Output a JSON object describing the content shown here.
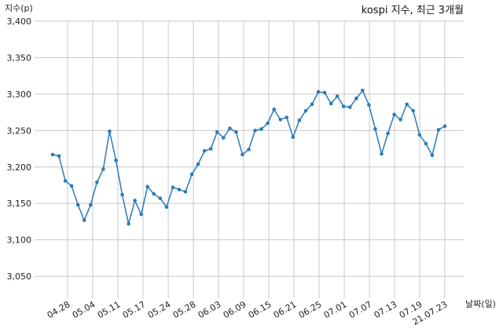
{
  "chart_data": {
    "type": "line",
    "title": "kospi 지수, 최근 3개월",
    "ylabel": "지수(p)",
    "xlabel": "날짜(일)",
    "ylim": [
      3020,
      3400
    ],
    "yticks": [
      3050,
      3100,
      3150,
      3200,
      3250,
      3300,
      3350,
      3400
    ],
    "ytick_labels": [
      "3,050",
      "3,100",
      "3,150",
      "3,200",
      "3,250",
      "3,300",
      "3,350",
      "3,400"
    ],
    "xtick_labels": [
      "04.28",
      "05.04",
      "05.11",
      "05.17",
      "05.24",
      "05.28",
      "06.03",
      "06.09",
      "06.15",
      "06.21",
      "06.25",
      "07.01",
      "07.07",
      "07.13",
      "07.19",
      "21.07.23"
    ],
    "grid": true,
    "series": [
      {
        "color": "#2b7bb9",
        "values": [
          3217,
          3215,
          3181,
          3174,
          3148,
          3127,
          3148,
          3179,
          3197,
          3249,
          3209,
          3162,
          3122,
          3154,
          3135,
          3173,
          3163,
          3157,
          3145,
          3172,
          3169,
          3166,
          3190,
          3204,
          3222,
          3225,
          3248,
          3240,
          3253,
          3248,
          3217,
          3224,
          3250,
          3252,
          3260,
          3279,
          3265,
          3268,
          3241,
          3264,
          3277,
          3286,
          3303,
          3302,
          3287,
          3297,
          3283,
          3282,
          3294,
          3305,
          3285,
          3252,
          3218,
          3246,
          3272,
          3265,
          3286,
          3277,
          3244,
          3232,
          3216,
          3251,
          3256
        ]
      }
    ]
  }
}
